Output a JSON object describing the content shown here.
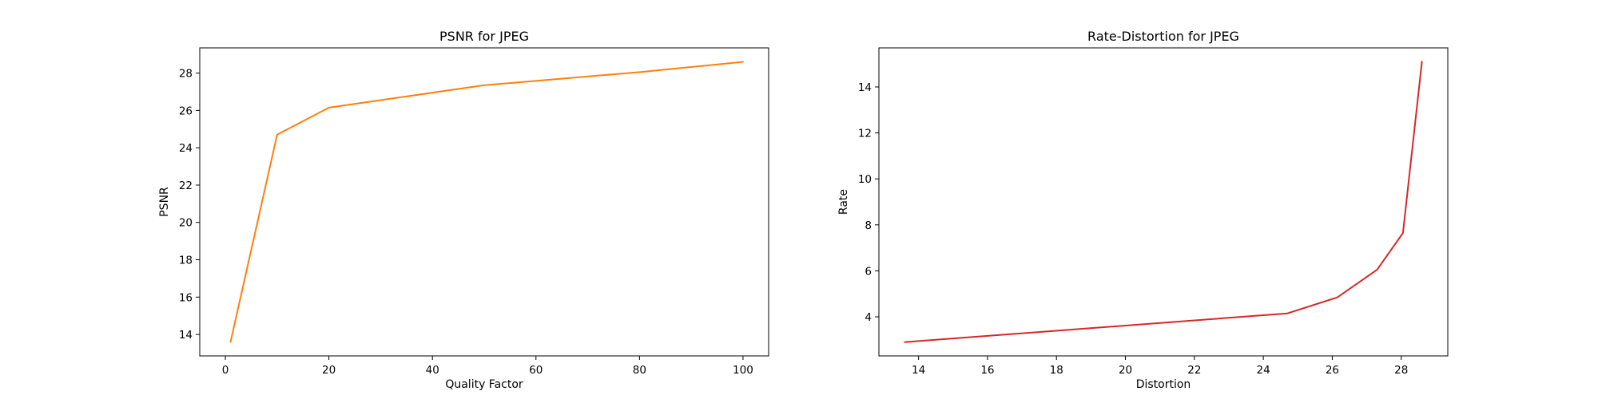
{
  "chart_data": [
    {
      "type": "line",
      "title": "PSNR for JPEG",
      "xlabel": "Quality Factor",
      "ylabel": "PSNR",
      "xlim": [
        -4.95,
        104.95
      ],
      "ylim": [
        12.85,
        29.35
      ],
      "xticks": [
        0,
        20,
        40,
        60,
        80,
        100
      ],
      "yticks": [
        14,
        16,
        18,
        20,
        22,
        24,
        26,
        28
      ],
      "grid": false,
      "series": [
        {
          "color": "#ff7f0e",
          "x": [
            1,
            10,
            20,
            50,
            80,
            100
          ],
          "y": [
            13.6,
            24.7,
            26.15,
            27.35,
            28.05,
            28.6
          ]
        }
      ]
    },
    {
      "type": "line",
      "title": "Rate-Distortion for JPEG",
      "xlabel": "Distortion",
      "ylabel": "Rate",
      "xlim": [
        12.85,
        29.35
      ],
      "ylim": [
        2.3,
        15.7
      ],
      "xticks": [
        14,
        16,
        18,
        20,
        22,
        24,
        26,
        28
      ],
      "yticks": [
        4,
        6,
        8,
        10,
        12,
        14
      ],
      "grid": false,
      "series": [
        {
          "color": "#d62728",
          "x": [
            13.6,
            24.7,
            26.15,
            27.3,
            28.05,
            28.6
          ],
          "y": [
            2.9,
            4.15,
            4.85,
            6.05,
            7.65,
            15.1
          ]
        }
      ]
    }
  ]
}
